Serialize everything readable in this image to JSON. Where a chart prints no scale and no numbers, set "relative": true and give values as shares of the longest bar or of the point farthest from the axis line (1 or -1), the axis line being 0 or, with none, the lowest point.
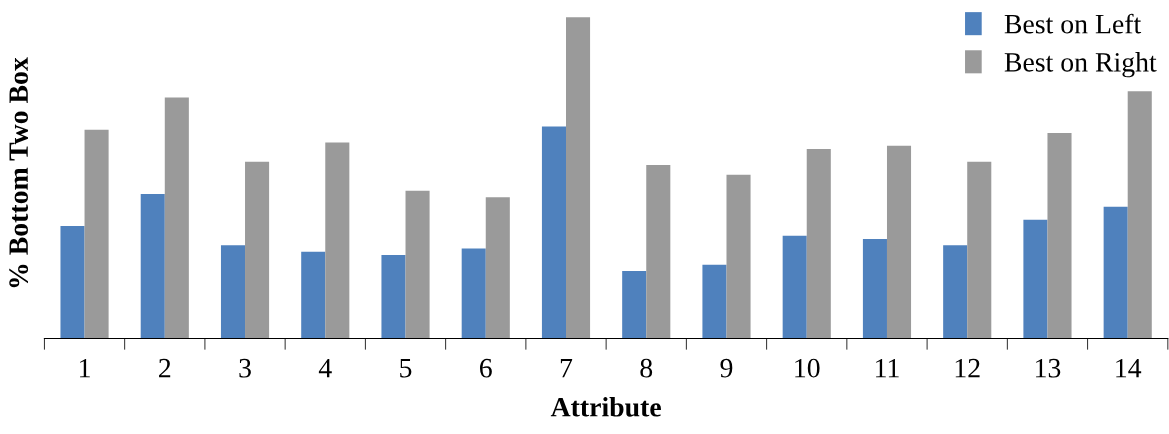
{
  "chart_data": {
    "type": "bar",
    "relative": true,
    "xlabel": "Attribute",
    "ylabel": "% Bottom Two Box",
    "categories": [
      "1",
      "2",
      "3",
      "4",
      "5",
      "6",
      "7",
      "8",
      "9",
      "10",
      "11",
      "12",
      "13",
      "14"
    ],
    "series": [
      {
        "name": "Best on Left",
        "color": "#4f81bd",
        "values": [
          0.35,
          0.45,
          0.29,
          0.27,
          0.26,
          0.28,
          0.66,
          0.21,
          0.23,
          0.32,
          0.31,
          0.29,
          0.37,
          0.41
        ]
      },
      {
        "name": "Best on Right",
        "color": "#9a9a9a",
        "values": [
          0.65,
          0.75,
          0.55,
          0.61,
          0.46,
          0.44,
          1,
          0.54,
          0.51,
          0.59,
          0.6,
          0.55,
          0.64,
          0.77
        ]
      }
    ],
    "legend": "top right",
    "grid": false
  }
}
